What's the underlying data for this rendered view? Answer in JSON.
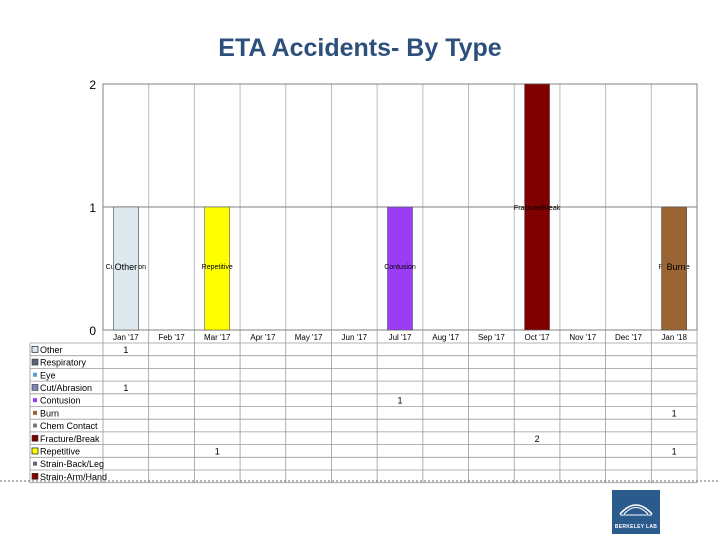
{
  "slide": {
    "title": "ETA Accidents- By Type"
  },
  "logo": {
    "text": "BERKELEY LAB"
  },
  "chart_data": {
    "type": "bar",
    "stacked": true,
    "title": "ETA Accidents- By Type",
    "xlabel": "",
    "ylabel": "",
    "ylim": [
      0,
      2
    ],
    "y_ticks": [
      "0",
      "1",
      "2"
    ],
    "grid": true,
    "legend_position": "data-table-left",
    "categories": [
      "Jan '17",
      "Feb '17",
      "Mar '17",
      "Apr '17",
      "May '17",
      "Jun '17",
      "Jul '17",
      "Aug '17",
      "Sep '17",
      "Oct '17",
      "Nov '17",
      "Dec '17",
      "Jan '18"
    ],
    "series": [
      {
        "name": "Other",
        "color": "#dde9ee",
        "marker": "square-outline",
        "values": [
          1,
          null,
          null,
          null,
          null,
          null,
          null,
          null,
          null,
          null,
          null,
          null,
          null
        ],
        "table_values": [
          "1",
          "",
          "",
          "",
          "",
          "",
          "",
          "",
          "",
          "",
          "",
          "",
          ""
        ],
        "bar_labels": [
          "Other",
          "",
          "",
          "",
          "",
          "",
          "",
          "",
          "",
          "",
          "",
          "",
          ""
        ]
      },
      {
        "name": "Respiratory",
        "color": "#5a6478",
        "marker": "square",
        "values": [
          null,
          null,
          null,
          null,
          null,
          null,
          null,
          null,
          null,
          null,
          null,
          null,
          null
        ],
        "table_values": [
          "",
          "",
          "",
          "",
          "",
          "",
          "",
          "",
          "",
          "",
          "",
          "",
          ""
        ],
        "bar_labels": [
          "",
          "",
          "",
          "",
          "",
          "",
          "",
          "",
          "",
          "",
          "",
          "",
          ""
        ]
      },
      {
        "name": "Eye",
        "color": "#5aa0c8",
        "marker": "small",
        "values": [
          null,
          null,
          null,
          null,
          null,
          null,
          null,
          null,
          null,
          null,
          null,
          null,
          null
        ],
        "table_values": [
          "",
          "",
          "",
          "",
          "",
          "",
          "",
          "",
          "",
          "",
          "",
          "",
          ""
        ],
        "bar_labels": [
          "",
          "",
          "",
          "",
          "",
          "",
          "",
          "",
          "",
          "",
          "",
          "",
          ""
        ]
      },
      {
        "name": "Cut/Abrasion",
        "color": "#8585b5",
        "marker": "square",
        "values": [
          1,
          null,
          null,
          null,
          null,
          null,
          null,
          null,
          null,
          null,
          null,
          null,
          null
        ],
        "table_values": [
          "1",
          "",
          "",
          "",
          "",
          "",
          "",
          "",
          "",
          "",
          "",
          "",
          ""
        ],
        "bar_labels": [
          "Cut/Abrasion",
          "",
          "",
          "",
          "",
          "",
          "",
          "",
          "",
          "",
          "",
          "",
          ""
        ]
      },
      {
        "name": "Contusion",
        "color": "#9b3cf7",
        "marker": "small",
        "values": [
          null,
          null,
          null,
          null,
          null,
          null,
          1,
          null,
          null,
          null,
          null,
          null,
          null
        ],
        "table_values": [
          "",
          "",
          "",
          "",
          "",
          "",
          "1",
          "",
          "",
          "",
          "",
          "",
          ""
        ],
        "bar_labels": [
          "",
          "",
          "",
          "",
          "",
          "",
          "Contusion",
          "",
          "",
          "",
          "",
          "",
          ""
        ]
      },
      {
        "name": "Burn",
        "color": "#9a6433",
        "marker": "small",
        "values": [
          null,
          null,
          null,
          null,
          null,
          null,
          null,
          null,
          null,
          null,
          null,
          null,
          1
        ],
        "table_values": [
          "",
          "",
          "",
          "",
          "",
          "",
          "",
          "",
          "",
          "",
          "",
          "",
          "1"
        ],
        "bar_labels": [
          "",
          "",
          "",
          "",
          "",
          "",
          "",
          "",
          "",
          "",
          "",
          "",
          "Burn"
        ]
      },
      {
        "name": "Chem Contact",
        "color": "#7a7a7a",
        "marker": "small",
        "values": [
          null,
          null,
          null,
          null,
          null,
          null,
          null,
          null,
          null,
          null,
          null,
          null,
          null
        ],
        "table_values": [
          "",
          "",
          "",
          "",
          "",
          "",
          "",
          "",
          "",
          "",
          "",
          "",
          ""
        ],
        "bar_labels": [
          "",
          "",
          "",
          "",
          "",
          "",
          "",
          "",
          "",
          "",
          "",
          "",
          ""
        ]
      },
      {
        "name": "Fracture/Break",
        "color": "#800000",
        "marker": "square",
        "values": [
          null,
          null,
          null,
          null,
          null,
          null,
          null,
          null,
          null,
          2,
          null,
          null,
          null
        ],
        "table_values": [
          "",
          "",
          "",
          "",
          "",
          "",
          "",
          "",
          "",
          "2",
          "",
          "",
          ""
        ],
        "bar_labels": [
          "",
          "",
          "",
          "",
          "",
          "",
          "",
          "",
          "",
          "Fracture/Break",
          "",
          "",
          ""
        ]
      },
      {
        "name": "Repetitive",
        "color": "#ffff00",
        "marker": "square-outline",
        "values": [
          null,
          null,
          1,
          null,
          null,
          null,
          null,
          null,
          null,
          null,
          null,
          null,
          1
        ],
        "table_values": [
          "",
          "",
          "1",
          "",
          "",
          "",
          "",
          "",
          "",
          "",
          "",
          "",
          "1"
        ],
        "bar_labels": [
          "",
          "",
          "Repetitive",
          "",
          "",
          "",
          "",
          "",
          "",
          "",
          "",
          "",
          "Repetitive"
        ]
      },
      {
        "name": "Strain-Back/Leg",
        "color": "#5a6478",
        "marker": "small",
        "values": [
          null,
          null,
          null,
          null,
          null,
          null,
          null,
          null,
          null,
          null,
          null,
          null,
          null
        ],
        "table_values": [
          "",
          "",
          "",
          "",
          "",
          "",
          "",
          "",
          "",
          "",
          "",
          "",
          ""
        ],
        "bar_labels": [
          "",
          "",
          "",
          "",
          "",
          "",
          "",
          "",
          "",
          "",
          "",
          "",
          ""
        ]
      },
      {
        "name": "Strain-Arm/Hand",
        "color": "#800000",
        "marker": "square",
        "values": [
          null,
          null,
          null,
          null,
          null,
          null,
          null,
          null,
          null,
          null,
          null,
          null,
          null
        ],
        "table_values": [
          "",
          "",
          "",
          "",
          "",
          "",
          "",
          "",
          "",
          "",
          "",
          "",
          ""
        ],
        "bar_labels": [
          "",
          "",
          "",
          "",
          "",
          "",
          "",
          "",
          "",
          "",
          "",
          "",
          ""
        ]
      }
    ],
    "stack_order": [
      [
        3,
        0
      ],
      [],
      [
        8
      ],
      [],
      [],
      [],
      [
        4
      ],
      [],
      [],
      [
        7
      ],
      [],
      [],
      [
        8,
        5
      ]
    ]
  }
}
